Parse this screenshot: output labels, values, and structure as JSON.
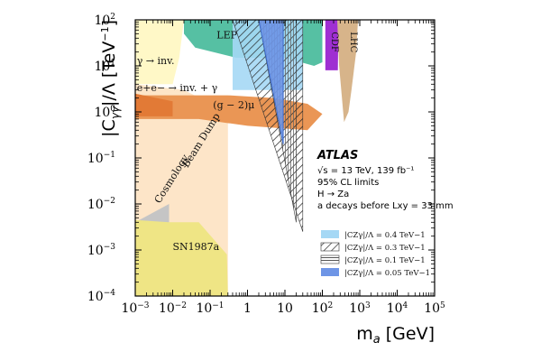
{
  "chart_data": {
    "type": "area",
    "xlabel_parts": [
      "m",
      "a",
      " [GeV]"
    ],
    "ylabel_parts": [
      "|C",
      "γγ",
      "|/Λ [TeV",
      "−1",
      "]"
    ],
    "x_scale": "log",
    "y_scale": "log",
    "xlim": [
      0.001,
      100000
    ],
    "ylim": [
      0.0001,
      100
    ],
    "x_ticks": [
      {
        "value": 0.001,
        "base": "10",
        "exp": "−3"
      },
      {
        "value": 0.01,
        "base": "10",
        "exp": "−2"
      },
      {
        "value": 0.1,
        "base": "10",
        "exp": "−1"
      },
      {
        "value": 1,
        "base": "1",
        "exp": ""
      },
      {
        "value": 10,
        "base": "10",
        "exp": ""
      },
      {
        "value": 100,
        "base": "10",
        "exp": "2"
      },
      {
        "value": 1000,
        "base": "10",
        "exp": "3"
      },
      {
        "value": 10000,
        "base": "10",
        "exp": "4"
      },
      {
        "value": 100000,
        "base": "10",
        "exp": "5"
      }
    ],
    "y_ticks": [
      {
        "value": 0.0001,
        "base": "10",
        "exp": "−4"
      },
      {
        "value": 0.001,
        "base": "10",
        "exp": "−3"
      },
      {
        "value": 0.01,
        "base": "10",
        "exp": "−2"
      },
      {
        "value": 0.1,
        "base": "10",
        "exp": "−1"
      },
      {
        "value": 1,
        "base": "10",
        "exp": "0"
      },
      {
        "value": 10,
        "base": "10",
        "exp": "1"
      },
      {
        "value": 100,
        "base": "10",
        "exp": "2"
      }
    ],
    "regions": [
      {
        "name": "Beam Dump",
        "color": "#fde5c8",
        "points": [
          [
            0.001,
            4
          ],
          [
            0.02,
            3
          ],
          [
            0.3,
            1
          ],
          [
            0.3,
            0.0001
          ],
          [
            0.13,
            0.0001
          ],
          [
            0.005,
            0.003
          ],
          [
            0.001,
            0.003
          ]
        ]
      },
      {
        "name": "γ → inv.",
        "color": "#fff8c7",
        "points": [
          [
            0.001,
            100
          ],
          [
            0.001,
            4
          ],
          [
            0.01,
            4
          ],
          [
            0.015,
            15
          ],
          [
            0.02,
            100
          ]
        ]
      },
      {
        "name": "Cosmology",
        "color": "#c5c5c5",
        "points": [
          [
            0.001,
            0.004
          ],
          [
            0.008,
            0.01
          ],
          [
            0.008,
            0.0015
          ],
          [
            0.001,
            0.0015
          ]
        ]
      },
      {
        "name": "SN1987a",
        "color": "#efe585",
        "points": [
          [
            0.001,
            0.0045
          ],
          [
            0.008,
            0.004
          ],
          [
            0.05,
            0.004
          ],
          [
            0.28,
            0.0008
          ],
          [
            0.3,
            0.0001
          ],
          [
            0.001,
            0.0001
          ]
        ]
      },
      {
        "name": "(g − 2)μ",
        "color": "#ea9655",
        "points": [
          [
            0.001,
            2.3
          ],
          [
            0.3,
            2.3
          ],
          [
            5,
            2
          ],
          [
            40,
            1.5
          ],
          [
            100,
            0.9
          ],
          [
            40,
            0.4
          ],
          [
            1,
            0.5
          ],
          [
            0.05,
            0.7
          ],
          [
            0.001,
            0.7
          ]
        ]
      },
      {
        "name": "e+e− → inv. + γ",
        "color": "#e27a36",
        "points": [
          [
            0.001,
            2.5
          ],
          [
            0.01,
            1.7
          ],
          [
            0.01,
            0.8
          ],
          [
            0.001,
            0.8
          ]
        ]
      },
      {
        "name": "LEP",
        "color": "#56c0a3",
        "points": [
          [
            0.02,
            100
          ],
          [
            100,
            100
          ],
          [
            100,
            12
          ],
          [
            60,
            10
          ],
          [
            10,
            15
          ],
          [
            0.5,
            15
          ],
          [
            0.04,
            25
          ],
          [
            0.02,
            50
          ]
        ]
      },
      {
        "name": "CDF",
        "color": "#9f2fd2",
        "points": [
          [
            120,
            100
          ],
          [
            270,
            100
          ],
          [
            260,
            8
          ],
          [
            120,
            8
          ]
        ]
      },
      {
        "name": "LHC",
        "color": "#d7b48a",
        "points": [
          [
            250,
            100
          ],
          [
            900,
            100
          ],
          [
            800,
            20
          ],
          [
            600,
            3
          ],
          [
            500,
            1
          ],
          [
            380,
            0.6
          ],
          [
            280,
            10
          ]
        ]
      }
    ],
    "atlas_limits": [
      {
        "label": "|CZγ|/Λ = 0.4 TeV−1",
        "color": "#a5d8f5",
        "style": "fill",
        "points": [
          [
            0.4,
            100
          ],
          [
            30,
            100
          ],
          [
            30,
            3
          ],
          [
            0.4,
            3
          ]
        ]
      },
      {
        "label": "|CZγ|/Λ = 0.3 TeV−1",
        "color": "#252525",
        "style": "hatch",
        "points": [
          [
            0.4,
            100
          ],
          [
            30,
            100
          ],
          [
            30,
            0.0025
          ],
          [
            0.4,
            100
          ]
        ]
      },
      {
        "label": "|CZγ|/Λ = 0.1 TeV−1",
        "color": "#777777",
        "style": "lines",
        "points": [
          [
            2,
            100
          ],
          [
            20,
            100
          ],
          [
            20,
            0.004
          ],
          [
            2,
            100
          ]
        ]
      },
      {
        "label": "|CZγ|/Λ = 0.05 TeV−1",
        "color": "#6e95e6",
        "style": "fill",
        "points": [
          [
            2,
            100
          ],
          [
            9,
            100
          ],
          [
            9,
            0.2
          ],
          [
            2,
            100
          ]
        ]
      }
    ],
    "annotations": [
      {
        "text": "LEP",
        "x": 0.15,
        "y": 40
      },
      {
        "text": "γ → inv.",
        "x": 0.0011,
        "y": 11,
        "italic_prefix": "γ"
      },
      {
        "text": "e+e− → inv. + γ",
        "x": 0.0011,
        "y": 2.8
      },
      {
        "text": "(g − 2)μ",
        "x": 0.12,
        "y": 1.2
      },
      {
        "text": "Beam Dump",
        "x": 0.025,
        "y": 0.06,
        "rotate": 58
      },
      {
        "text": "Cosmology",
        "x": 0.0045,
        "y": 0.01,
        "rotate": 58
      },
      {
        "text": "SN1987a",
        "x": 0.01,
        "y": 0.001
      },
      {
        "text": "CDF",
        "x": 180,
        "y": 55,
        "rotate": -90
      },
      {
        "text": "LHC",
        "x": 580,
        "y": 55,
        "rotate": -90
      }
    ],
    "info_box": {
      "title": "ATLAS",
      "lines": [
        "√s = 13 TeV, 139 fb⁻¹",
        "95% CL limits",
        "H → Za",
        "a decays before Lxy = 33 mm"
      ]
    },
    "grid": false,
    "legend_placement": "bottom-right"
  }
}
